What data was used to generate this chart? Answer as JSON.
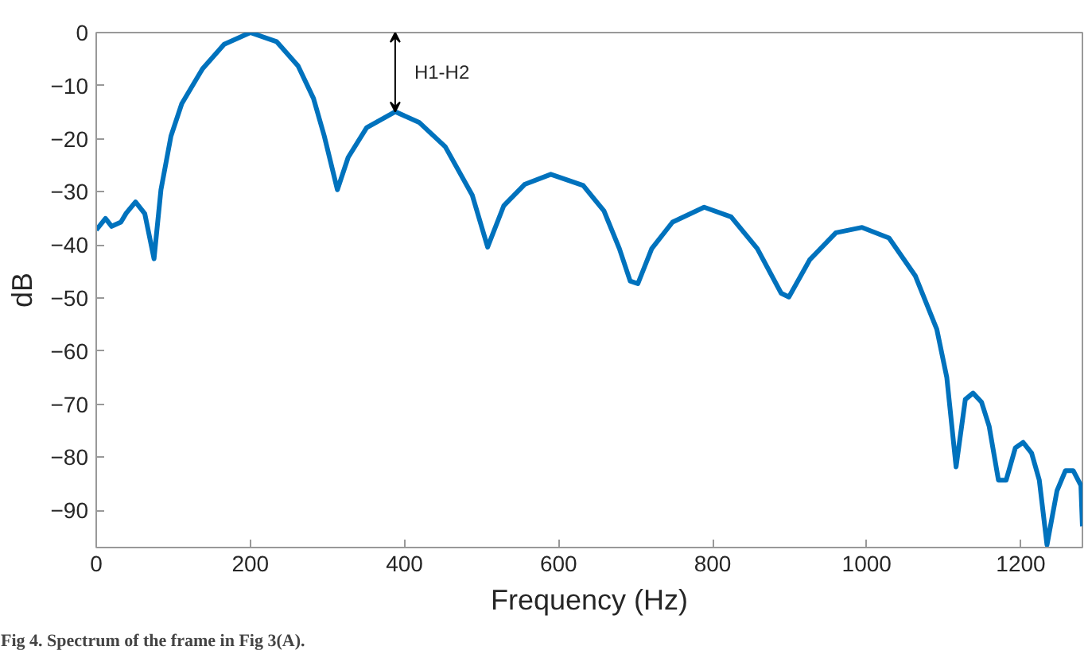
{
  "chart_data": {
    "type": "line",
    "xlabel": "Frequency (Hz)",
    "ylabel": "dB",
    "xlim": [
      0,
      1280
    ],
    "ylim": [
      -97,
      0
    ],
    "xticks": [
      0,
      200,
      400,
      600,
      800,
      1000,
      1200
    ],
    "yticks": [
      -90,
      -80,
      -70,
      -60,
      -50,
      -40,
      -30,
      -20,
      -10,
      0
    ],
    "grid": false,
    "series": [
      {
        "color": "#0072bd",
        "x": [
          0,
          12,
          20,
          32,
          39,
          51,
          63,
          75,
          84,
          97,
          111,
          138,
          166,
          200,
          234,
          262,
          282,
          296,
          313,
          327,
          351,
          388,
          419,
          453,
          488,
          508,
          529,
          556,
          590,
          632,
          659,
          679,
          693,
          703,
          721,
          748,
          789,
          824,
          858,
          889,
          899,
          926,
          960,
          994,
          1029,
          1063,
          1091,
          1104,
          1116,
          1128,
          1138,
          1149,
          1159,
          1171,
          1181,
          1193,
          1203,
          1214,
          1224,
          1234,
          1247,
          1258,
          1268,
          1278,
          1280
        ],
        "values": [
          -37.2,
          -35,
          -36.5,
          -35.7,
          -34,
          -31.9,
          -34.1,
          -42.6,
          -29.6,
          -19.5,
          -13.4,
          -6.8,
          -2.2,
          0,
          -1.7,
          -6.3,
          -12.4,
          -19.5,
          -29.6,
          -23.5,
          -17.9,
          -14.9,
          -16.9,
          -21.5,
          -30.6,
          -40.4,
          -32.6,
          -28.6,
          -26.7,
          -28.8,
          -33.6,
          -40.7,
          -46.8,
          -47.3,
          -40.7,
          -35.7,
          -32.9,
          -34.7,
          -40.7,
          -49.1,
          -49.8,
          -42.8,
          -37.7,
          -36.7,
          -38.7,
          -45.8,
          -55.9,
          -65,
          -81.8,
          -69.1,
          -67.9,
          -69.6,
          -74.2,
          -84.3,
          -84.3,
          -78.2,
          -77.2,
          -79.2,
          -84.3,
          -96.5,
          -86.3,
          -82.5,
          -82.5,
          -85.3,
          -93
        ]
      }
    ],
    "annotations": [
      {
        "text": "H1-H2",
        "x": 388,
        "y": -14.9
      },
      "Fig 4. Spectrum of the frame in Fig 3(A)."
    ]
  }
}
